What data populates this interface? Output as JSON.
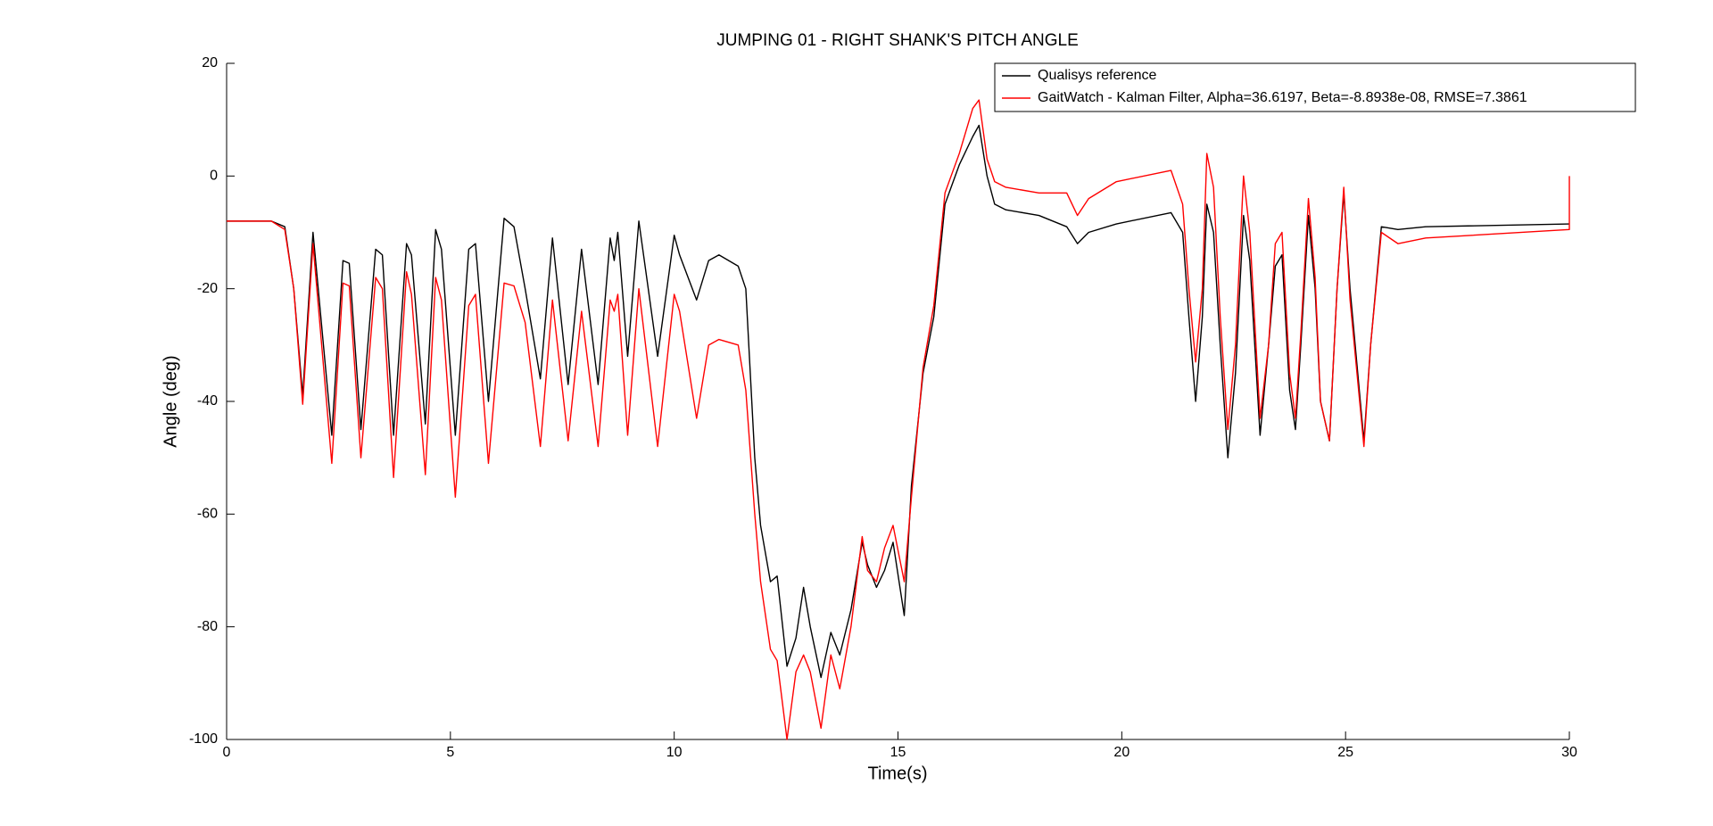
{
  "chart_data": {
    "type": "line",
    "title": "JUMPING 01 - RIGHT SHANK'S PITCH ANGLE",
    "x_label": "Time(s)",
    "y_label": "Angle (deg)",
    "xlim": [
      0,
      30
    ],
    "ylim": [
      -100,
      20
    ],
    "xticks": [
      0,
      5,
      10,
      15,
      20,
      25,
      30
    ],
    "yticks": [
      -100,
      -80,
      -60,
      -40,
      -20,
      0,
      20
    ],
    "grid": false,
    "legend": "top-right",
    "x": [
      0,
      1,
      1.3,
      1.5,
      1.7,
      1.93,
      2.35,
      2.6,
      2.74,
      3.0,
      3.33,
      3.48,
      3.73,
      4.02,
      4.13,
      4.44,
      4.67,
      4.8,
      5.11,
      5.41,
      5.56,
      5.85,
      6.2,
      6.42,
      6.67,
      7.01,
      7.28,
      7.63,
      7.93,
      8.3,
      8.57,
      8.66,
      8.74,
      8.96,
      9.21,
      9.63,
      10.0,
      10.12,
      10.5,
      10.77,
      11.0,
      11.43,
      11.6,
      11.8,
      11.93,
      12.15,
      12.3,
      12.52,
      12.72,
      12.89,
      13.04,
      13.28,
      13.5,
      13.7,
      13.95,
      14.2,
      14.32,
      14.52,
      14.7,
      14.89,
      15.14,
      15.3,
      15.56,
      15.8,
      16.05,
      16.37,
      16.67,
      16.81,
      16.99,
      17.16,
      17.41,
      18.15,
      18.77,
      19.01,
      19.26,
      19.88,
      21.1,
      21.36,
      21.5,
      21.65,
      21.8,
      21.9,
      22.05,
      22.2,
      22.37,
      22.54,
      22.72,
      22.86,
      23.09,
      23.28,
      23.43,
      23.58,
      23.75,
      23.88,
      24.0,
      24.17,
      24.32,
      24.44,
      24.64,
      24.81,
      24.96,
      25.1,
      25.41,
      25.56,
      25.8,
      26.17,
      26.79,
      30,
      30
    ],
    "series": [
      {
        "name": "Qualisys reference",
        "color": "#000000",
        "values": [
          -8,
          -8,
          -9,
          -20,
          -39,
          -10,
          -46,
          -15,
          -15.5,
          -45,
          -13,
          -14,
          -46,
          -12,
          -14,
          -44,
          -9.5,
          -13,
          -46,
          -13,
          -12,
          -40,
          -7.5,
          -9,
          -20,
          -36,
          -11,
          -37,
          -13,
          -37,
          -11,
          -15,
          -10,
          -32,
          -8,
          -32,
          -10.5,
          -14,
          -22,
          -15,
          -14,
          -16,
          -20,
          -50,
          -62,
          -72,
          -71,
          -87,
          -82,
          -73,
          -80,
          -89,
          -81,
          -85,
          -77,
          -65,
          -69,
          -73,
          -70,
          -65,
          -78,
          -55,
          -35,
          -25,
          -5,
          2,
          7,
          9,
          0,
          -5,
          -6,
          -7,
          -9,
          -12,
          -10,
          -8.5,
          -6.5,
          -10,
          -25,
          -40,
          -25,
          -5,
          -10,
          -30,
          -50,
          -35,
          -7,
          -15,
          -46,
          -30,
          -16,
          -14,
          -38,
          -45,
          -30,
          -7,
          -20,
          -40,
          -47,
          -20,
          -3,
          -20,
          -47,
          -30,
          -9,
          -9.5,
          -9,
          -8.5,
          null
        ]
      },
      {
        "name": "GaitWatch - Kalman Filter, Alpha=36.6197, Beta=-8.8938e-08, RMSE=7.3861",
        "color": "#ff0000",
        "values": [
          -8,
          -8,
          -9.5,
          -20,
          -40.5,
          -12,
          -51,
          -19,
          -19.5,
          -50,
          -18,
          -20,
          -53.5,
          -17,
          -21,
          -53,
          -18,
          -22,
          -57,
          -23,
          -21,
          -51,
          -19,
          -19.5,
          -26,
          -48,
          -22,
          -47,
          -24,
          -48,
          -22,
          -24,
          -21,
          -46,
          -20,
          -48,
          -21,
          -24,
          -43,
          -30,
          -29,
          -30,
          -38,
          -60,
          -72,
          -84,
          -86,
          -100,
          -88,
          -85,
          -88,
          -98,
          -85,
          -91,
          -80,
          -64,
          -70,
          -72,
          -66,
          -62,
          -72,
          -57,
          -34,
          -23,
          -3,
          4,
          12,
          13.5,
          3,
          -1,
          -2,
          -3,
          -3,
          -7,
          -4,
          -1,
          1,
          -5,
          -20,
          -33,
          -20,
          4,
          -2,
          -25,
          -45,
          -30,
          0,
          -10,
          -43,
          -30,
          -12,
          -10,
          -35,
          -43,
          -28,
          -4,
          -18,
          -40,
          -47,
          -20,
          -2,
          -22,
          -48,
          -30,
          -10,
          -12,
          -11,
          -9.5,
          0
        ]
      }
    ]
  }
}
